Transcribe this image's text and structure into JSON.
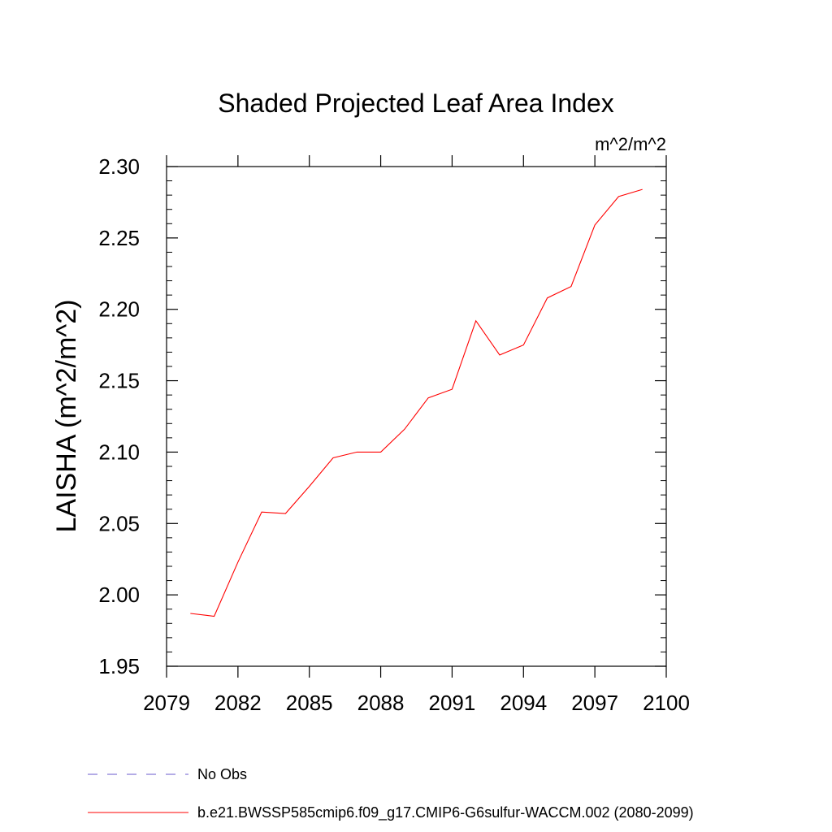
{
  "chart_data": {
    "type": "line",
    "title": "Shaded Projected Leaf Area Index",
    "units_label": "m^2/m^2",
    "ylabel": "LAISHA  (m^2/m^2)",
    "xlim": [
      2079,
      2100
    ],
    "ylim": [
      1.95,
      2.3
    ],
    "x_ticks": [
      2079,
      2082,
      2085,
      2088,
      2091,
      2094,
      2097,
      2100
    ],
    "y_ticks": [
      1.95,
      2.0,
      2.05,
      2.1,
      2.15,
      2.2,
      2.25,
      2.3
    ],
    "y_tick_labels": [
      "1.95",
      "2.00",
      "2.05",
      "2.10",
      "2.15",
      "2.20",
      "2.25",
      "2.30"
    ],
    "grid": false,
    "series": [
      {
        "name": "b.e21.BWSSP585cmip6.f09_g17.CMIP6-G6sulfur-WACCM.002 (2080-2099)",
        "color": "#ff0000",
        "x": [
          2080,
          2081,
          2082,
          2083,
          2084,
          2085,
          2086,
          2087,
          2088,
          2089,
          2090,
          2091,
          2092,
          2093,
          2094,
          2095,
          2096,
          2097,
          2098,
          2099
        ],
        "y": [
          1.987,
          1.985,
          2.023,
          2.058,
          2.057,
          2.076,
          2.096,
          2.1,
          2.1,
          2.116,
          2.138,
          2.144,
          2.192,
          2.168,
          2.175,
          2.208,
          2.216,
          2.259,
          2.279,
          2.284
        ]
      }
    ],
    "legend": {
      "placement": "bottom-left",
      "entries": [
        {
          "label": "No Obs",
          "color": "#6a5acd",
          "style": "dashed"
        },
        {
          "label": "b.e21.BWSSP585cmip6.f09_g17.CMIP6-G6sulfur-WACCM.002 (2080-2099)",
          "color": "#ff0000",
          "style": "solid"
        }
      ]
    }
  }
}
